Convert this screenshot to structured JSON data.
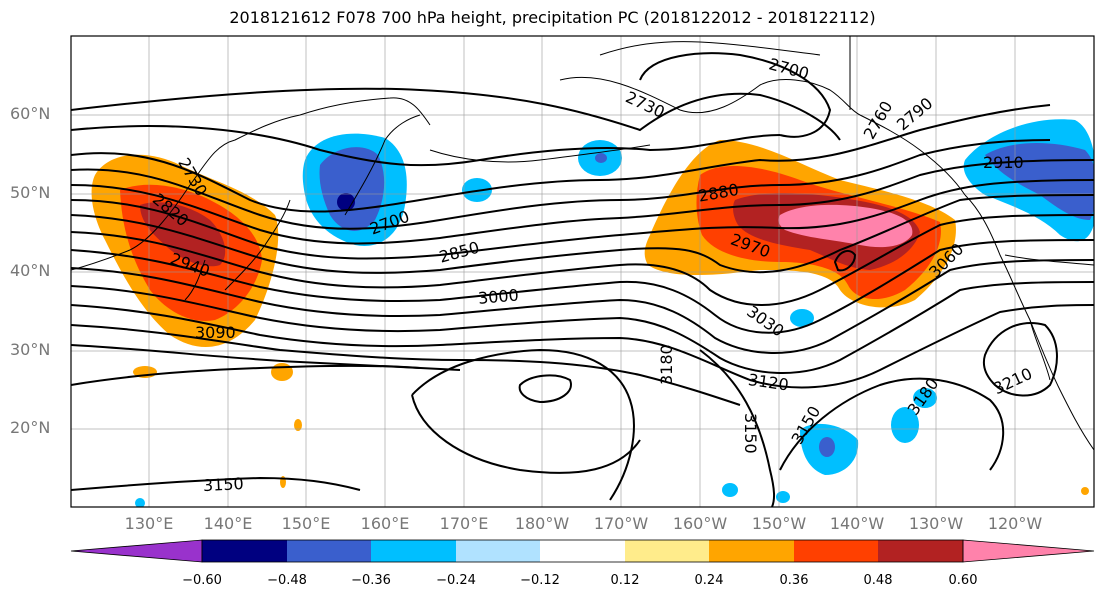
{
  "title": "2018121612 F078 700 hPa height, precipitation PC (2018122012 - 2018122112)",
  "lat_labels": [
    "60°N",
    "50°N",
    "40°N",
    "30°N",
    "20°N"
  ],
  "lon_labels": [
    "130°E",
    "140°E",
    "150°E",
    "160°E",
    "170°E",
    "180°W",
    "170°W",
    "160°W",
    "150°W",
    "140°W",
    "130°W",
    "120°W"
  ],
  "contour_labels": [
    "2730",
    "2820",
    "2940",
    "3090",
    "2700",
    "2850",
    "3000",
    "3150",
    "2700",
    "2730",
    "2880",
    "2970",
    "3030",
    "3120",
    "3180",
    "3150",
    "3150",
    "2760",
    "2790",
    "2910",
    "3060",
    "3180",
    "3210"
  ],
  "colorbar": {
    "ticks": [
      "−0.60",
      "−0.48",
      "−0.36",
      "−0.24",
      "−0.12",
      "0.12",
      "0.24",
      "0.36",
      "0.48",
      "0.60"
    ],
    "colors": [
      "#9932CC",
      "#000080",
      "#3A5FCD",
      "#00BFFF",
      "#B0E2FF",
      "#FFFFFF",
      "#FFEC8B",
      "#FFA500",
      "#FF4000",
      "#B22222",
      "#FF82AB"
    ]
  }
}
